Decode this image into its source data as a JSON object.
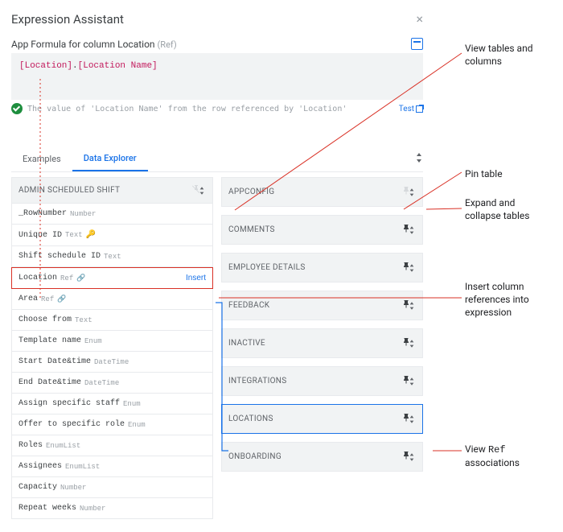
{
  "dialog": {
    "title": "Expression Assistant",
    "subtitle_prefix": "App Formula for column Location",
    "subtitle_suffix": "(Ref)"
  },
  "expression": {
    "tok1": "[Location]",
    "dot": ".",
    "tok2": "[Location Name]"
  },
  "validation": {
    "text": "The value of 'Location Name' from the row referenced by 'Location'",
    "test_label": "Test"
  },
  "tabs": {
    "examples": "Examples",
    "data_explorer": "Data Explorer"
  },
  "left_table": {
    "header": "ADMIN SCHEDULED SHIFT",
    "insert_label": "Insert",
    "columns": [
      {
        "name": "_RowNumber",
        "type": "Number"
      },
      {
        "name": "Unique ID",
        "type": "Text",
        "key": true
      },
      {
        "name": "Shift schedule ID",
        "type": "Text"
      },
      {
        "name": "Location",
        "type": "Ref",
        "link": true,
        "highlight": true,
        "insert": true
      },
      {
        "name": "Area",
        "type": "Ref",
        "link": true
      },
      {
        "name": "Choose from",
        "type": "Text"
      },
      {
        "name": "Template name",
        "type": "Enum"
      },
      {
        "name": "Start Date&time",
        "type": "DateTime"
      },
      {
        "name": "End Date&time",
        "type": "DateTime"
      },
      {
        "name": "Assign specific staff",
        "type": "Enum"
      },
      {
        "name": "Offer to specific role",
        "type": "Enum"
      },
      {
        "name": "Roles",
        "type": "EnumList"
      },
      {
        "name": "Assignees",
        "type": "EnumList"
      },
      {
        "name": "Capacity",
        "type": "Number"
      },
      {
        "name": "Repeat weeks",
        "type": "Number"
      }
    ]
  },
  "right_tables": [
    {
      "name": "APPCONFIG",
      "pin": "mute"
    },
    {
      "name": "COMMENTS",
      "pin": "dark"
    },
    {
      "name": "EMPLOYEE DETAILS",
      "pin": "dark"
    },
    {
      "name": "FEEDBACK",
      "pin": "dark"
    },
    {
      "name": "INACTIVE",
      "pin": "dark"
    },
    {
      "name": "INTEGRATIONS",
      "pin": "dark"
    },
    {
      "name": "LOCATIONS",
      "pin": "dark",
      "selected": true
    },
    {
      "name": "ONBOARDING",
      "pin": "dark"
    }
  ],
  "annotations": {
    "a1": "View tables and columns",
    "a2": "Pin table",
    "a3": "Expand and collapse tables",
    "a4": "Insert column references into expression",
    "a5_l1": "View",
    "a5_ref": "Ref",
    "a5_l2": "associations"
  },
  "colors": {
    "accent": "#1a73e8",
    "danger": "#d93025",
    "muted": "#9aa0a6",
    "panel": "#f1f3f4"
  }
}
